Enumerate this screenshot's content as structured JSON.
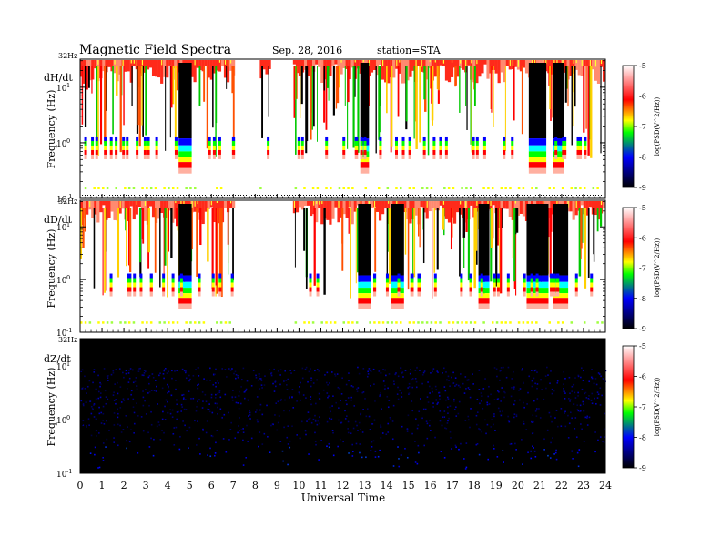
{
  "header": {
    "title": "Magnetic  Field  Spectra",
    "date": "Sep. 28, 2016",
    "station": "station=STA"
  },
  "chart_data": [
    {
      "type": "heatmap",
      "panel_label": "dH/dt",
      "ylabel": "Frequency  (Hz)",
      "top_label": "32Hz",
      "yscale": "log",
      "ylim": [
        0.1,
        32
      ],
      "y_ticks": [
        {
          "base": "10",
          "exp": "1",
          "value": 10
        },
        {
          "base": "10",
          "exp": "0",
          "value": 1
        },
        {
          "base": "10",
          "exp": "-1",
          "value": 0.1
        }
      ],
      "xlim": [
        0,
        24
      ],
      "colorbar": {
        "label": "log(PSD(V^2/Hz))",
        "range": [
          -9,
          -5
        ],
        "ticks": [
          "-5",
          "-6",
          "-7",
          "-8",
          "-9"
        ]
      },
      "quiet_intervals_ut": [
        [
          7.0,
          8.2
        ],
        [
          8.6,
          9.7
        ]
      ],
      "strong_intervals_ut": [
        [
          4.5,
          5.1
        ],
        [
          12.8,
          13.2
        ],
        [
          20.5,
          21.3
        ],
        [
          21.6,
          22.1
        ]
      ]
    },
    {
      "type": "heatmap",
      "panel_label": "dD/dt",
      "ylabel": "Frequency  (Hz)",
      "top_label": "32Hz",
      "yscale": "log",
      "ylim": [
        0.1,
        32
      ],
      "y_ticks": [
        {
          "base": "10",
          "exp": "1",
          "value": 10
        },
        {
          "base": "10",
          "exp": "0",
          "value": 1
        },
        {
          "base": "10",
          "exp": "-1",
          "value": 0.1
        }
      ],
      "xlim": [
        0,
        24
      ],
      "colorbar": {
        "label": "log(PSD(V^2/Hz))",
        "range": [
          -9,
          -5
        ],
        "ticks": [
          "-5",
          "-6",
          "-7",
          "-8",
          "-9"
        ]
      },
      "quiet_intervals_ut": [
        [
          7.0,
          9.7
        ]
      ],
      "strong_intervals_ut": [
        [
          4.5,
          5.1
        ],
        [
          12.7,
          13.3
        ],
        [
          14.2,
          14.8
        ],
        [
          18.2,
          18.7
        ],
        [
          20.4,
          21.4
        ],
        [
          21.6,
          22.3
        ]
      ]
    },
    {
      "type": "heatmap",
      "panel_label": "dZ/dt",
      "ylabel": "Frequency  (Hz)",
      "top_label": "32Hz",
      "yscale": "log",
      "ylim": [
        0.1,
        32
      ],
      "y_ticks": [
        {
          "base": "10",
          "exp": "1",
          "value": 10
        },
        {
          "base": "10",
          "exp": "0",
          "value": 1
        },
        {
          "base": "10",
          "exp": "-1",
          "value": 0.1
        }
      ],
      "xlim": [
        0,
        24
      ],
      "colorbar": {
        "label": "log(PSD(V^2/Hz))",
        "range": [
          -9,
          -5
        ],
        "ticks": [
          "-5",
          "-6",
          "-7",
          "-8",
          "-9"
        ]
      },
      "quiet_intervals_ut": [],
      "strong_intervals_ut": []
    }
  ],
  "x_axis": {
    "label": "Universal Time",
    "ticks": [
      "0",
      "1",
      "2",
      "3",
      "4",
      "5",
      "6",
      "7",
      "8",
      "9",
      "10",
      "11",
      "12",
      "13",
      "14",
      "15",
      "16",
      "17",
      "18",
      "19",
      "20",
      "21",
      "22",
      "23",
      "24"
    ]
  },
  "colors": {
    "colormap": [
      "#000000",
      "#0000ff",
      "#00ff00",
      "#ffff00",
      "#ff0000",
      "#ffffff"
    ]
  }
}
